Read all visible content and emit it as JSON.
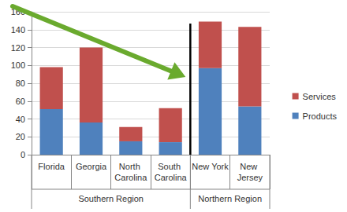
{
  "chart_data": {
    "type": "bar",
    "stacked": true,
    "categories": [
      "Florida",
      "Georgia",
      "North Carolina",
      "South Carolina",
      "New York",
      "New Jersey"
    ],
    "category_groups": [
      {
        "label": "Southern Region",
        "span": 4
      },
      {
        "label": "Northern Region",
        "span": 2
      }
    ],
    "series": [
      {
        "name": "Products",
        "color": "#4f81bd",
        "values": [
          51,
          36,
          15,
          14,
          97,
          54
        ]
      },
      {
        "name": "Services",
        "color": "#c0504d",
        "values": [
          47,
          84,
          16,
          38,
          52,
          89
        ]
      }
    ],
    "ylim": [
      0,
      160
    ],
    "yticks": [
      0,
      20,
      40,
      60,
      80,
      100,
      120,
      140,
      160
    ],
    "grid": true,
    "legend": "right"
  }
}
